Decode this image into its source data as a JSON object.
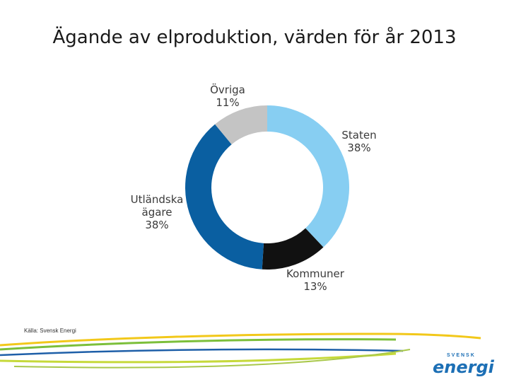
{
  "title": "Ägande av elproduktion, värden för år 2013",
  "source": "Källa: Svensk Energi",
  "logo": {
    "top": "SVENSK",
    "bottom": "energi"
  },
  "colors": {
    "staten": "#87cef2",
    "kommuner": "#111111",
    "utlandska": "#0a5fa1",
    "ovriga": "#c4c4c4",
    "logo": "#1c6fb5"
  },
  "chart_data": {
    "type": "pie",
    "variant": "donut",
    "title": "Ägande av elproduktion, värden för år 2013",
    "slices": [
      {
        "label_lines": [
          "Staten"
        ],
        "value": 38,
        "display": "38%",
        "color": "#87cef2"
      },
      {
        "label_lines": [
          "Kommuner"
        ],
        "value": 13,
        "display": "13%",
        "color": "#111111"
      },
      {
        "label_lines": [
          "Utländska",
          "ägare"
        ],
        "value": 38,
        "display": "38%",
        "color": "#0a5fa1"
      },
      {
        "label_lines": [
          "Övriga"
        ],
        "value": 11,
        "display": "11%",
        "color": "#c4c4c4"
      }
    ]
  }
}
